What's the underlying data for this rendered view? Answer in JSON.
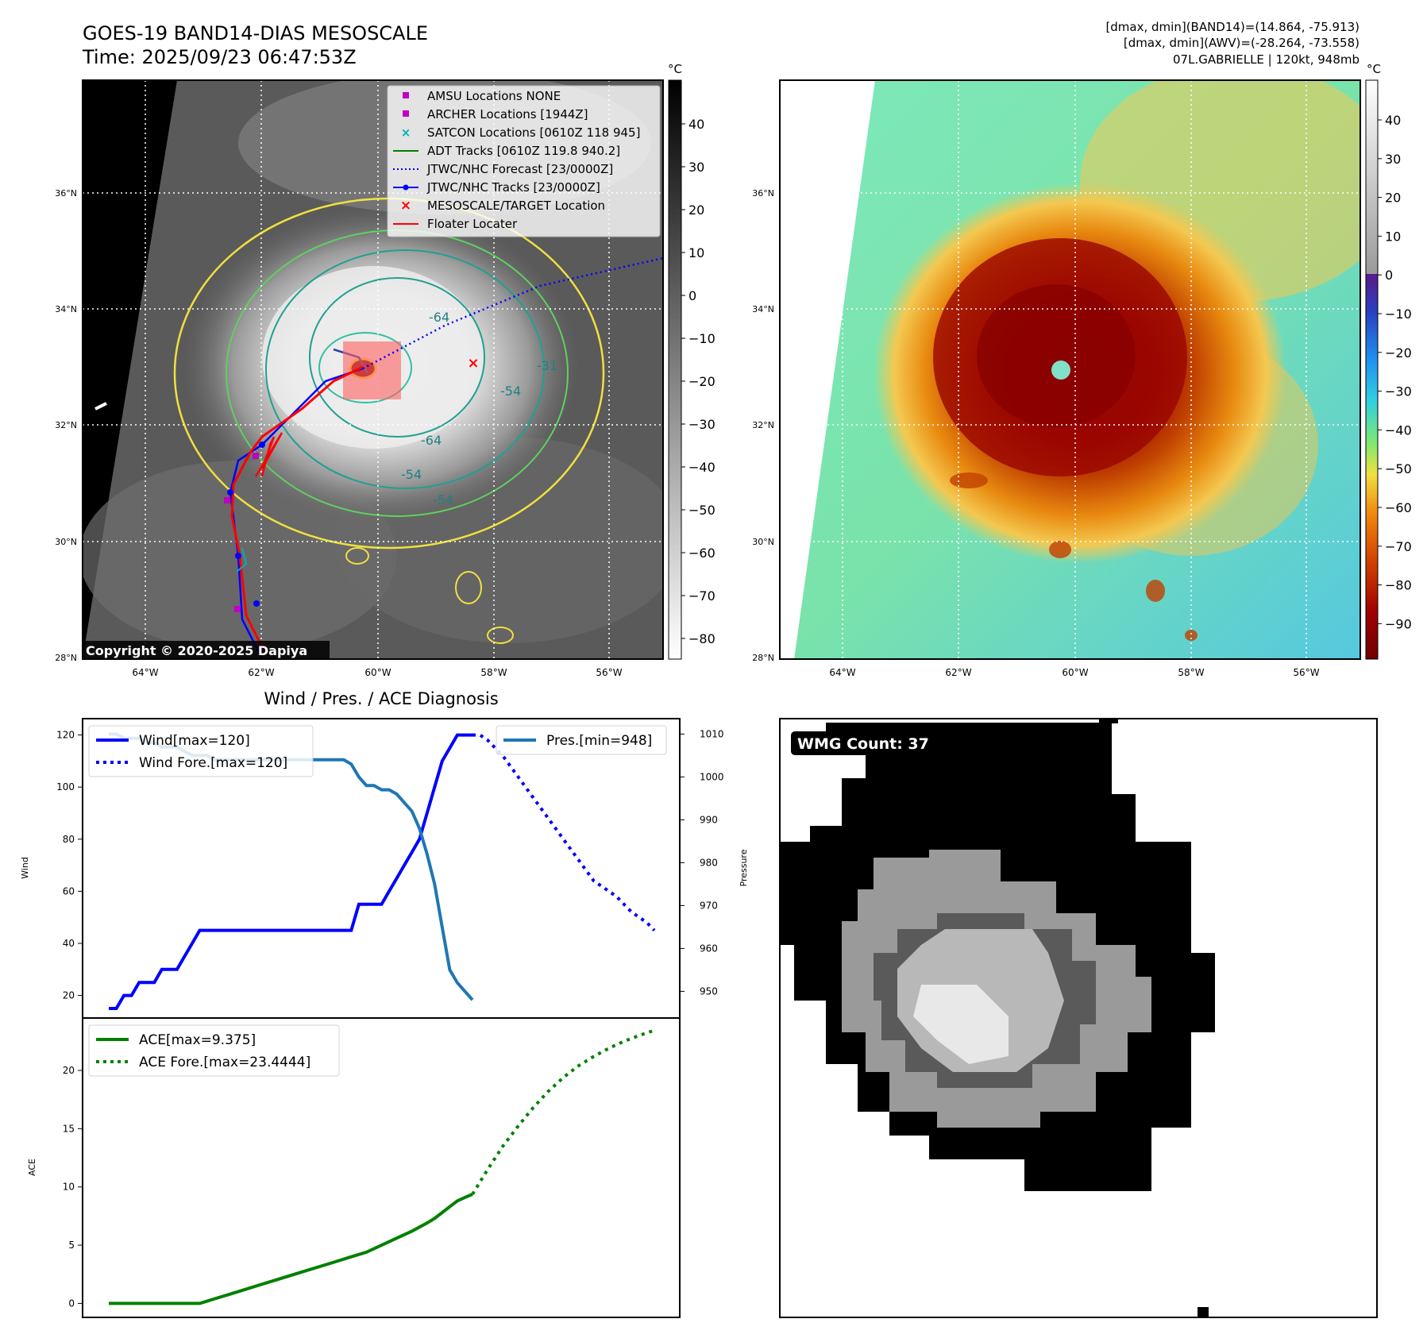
{
  "header": {
    "title_line1": "GOES-19 BAND14-DIAS MESOSCALE",
    "title_line2": "Time: 2025/09/23 06:47:53Z",
    "info_line1": "[dmax, dmin](BAND14)=(14.864, -75.913)",
    "info_line2": "[dmax, dmin](AWV)=(-28.264, -73.558)",
    "info_line3": "07L.GABRIELLE | 120kt, 948mb"
  },
  "map": {
    "lat_labels": [
      "36°N",
      "34°N",
      "32°N",
      "30°N",
      "28°N"
    ],
    "lon_labels": [
      "64°W",
      "62°W",
      "60°W",
      "58°W",
      "56°W"
    ],
    "copyright": "Copyright © 2020-2025 Dapiya",
    "contour_labels": [
      "-64",
      "-64",
      "-54",
      "-54",
      "-54",
      "-31"
    ],
    "legend": [
      {
        "label": "AMSU Locations NONE",
        "color": "#c000c0",
        "marker": "square"
      },
      {
        "label": "ARCHER Locations [1944Z]",
        "color": "#c000c0",
        "marker": "square"
      },
      {
        "label": "SATCON Locations [0610Z 118 945]",
        "color": "#00b0b0",
        "marker": "x"
      },
      {
        "label": "ADT Tracks [0610Z 119.8 940.2]",
        "color": "#008000",
        "marker": "line"
      },
      {
        "label": "JTWC/NHC Forecast [23/0000Z]",
        "color": "#0000ff",
        "marker": "dotted"
      },
      {
        "label": "JTWC/NHC Tracks [23/0000Z]",
        "color": "#0000ff",
        "marker": "line-dot"
      },
      {
        "label": "MESOSCALE/TARGET Location",
        "color": "#ff0000",
        "marker": "x"
      },
      {
        "label": "Floater Locater",
        "color": "#ff0000",
        "marker": "line"
      }
    ]
  },
  "colorbar_gray": {
    "unit": "°C",
    "ticks": [
      "40",
      "30",
      "20",
      "10",
      "0",
      "−10",
      "−20",
      "−30",
      "−40",
      "−50",
      "−60",
      "−70",
      "−80"
    ]
  },
  "colorbar_color": {
    "unit": "°C",
    "ticks": [
      "40",
      "30",
      "20",
      "10",
      "0",
      "−10",
      "−20",
      "−30",
      "−40",
      "−50",
      "−60",
      "−70",
      "−80",
      "−90"
    ]
  },
  "wmg": {
    "label": "WMG Count: 37"
  },
  "chart_data": [
    {
      "type": "line",
      "title": "Wind / Pres. / ACE Diagnosis",
      "ylabel": "Wind",
      "y2label": "Pressure",
      "ylim": [
        15,
        122
      ],
      "y2lim": [
        946,
        1011
      ],
      "yticks": [
        "20",
        "40",
        "60",
        "80",
        "100",
        "120"
      ],
      "y2ticks": [
        "950",
        "960",
        "970",
        "980",
        "990",
        "1000",
        "1010"
      ],
      "legend_left": [
        "Wind[max=120]",
        "Wind Fore.[max=120]"
      ],
      "legend_right": [
        "Pres.[min=948]"
      ],
      "series": [
        {
          "name": "Wind[max=120]",
          "color": "#0000ff",
          "style": "solid",
          "x": [
            0,
            1,
            2,
            3,
            4,
            5,
            6,
            7,
            8,
            9,
            10,
            11,
            12,
            13,
            14,
            15,
            16,
            17,
            18,
            19,
            20,
            21,
            22,
            23,
            24,
            25,
            26,
            27,
            28,
            29,
            30,
            31,
            32,
            33,
            34,
            35,
            36,
            37,
            38,
            39,
            40,
            41,
            42,
            43,
            44,
            45,
            46,
            47,
            48
          ],
          "y": [
            15,
            15,
            20,
            20,
            25,
            25,
            25,
            30,
            30,
            30,
            35,
            40,
            45,
            45,
            45,
            45,
            45,
            45,
            45,
            45,
            45,
            45,
            45,
            45,
            45,
            45,
            45,
            45,
            45,
            45,
            45,
            45,
            45,
            55,
            55,
            55,
            55,
            60,
            65,
            70,
            75,
            80,
            90,
            100,
            110,
            115,
            120,
            120,
            120
          ]
        },
        {
          "name": "Wind Fore.[max=120]",
          "color": "#0000ff",
          "style": "dotted",
          "x": [
            48,
            49,
            50,
            51,
            52,
            53,
            54,
            55,
            56,
            57,
            58,
            59,
            60,
            61,
            62,
            63,
            64,
            65,
            66,
            67,
            68,
            69,
            70,
            71,
            72
          ],
          "y": [
            120,
            120,
            118,
            115,
            112,
            108,
            104,
            100,
            96,
            92,
            88,
            84,
            80,
            76,
            72,
            68,
            64,
            62,
            60,
            58,
            55,
            52,
            50,
            48,
            45
          ]
        },
        {
          "name": "Pres.[min=948]",
          "color": "#1f77b4",
          "style": "solid",
          "axis": "y2",
          "x": [
            0,
            1,
            2,
            3,
            4,
            5,
            6,
            7,
            8,
            9,
            10,
            11,
            12,
            13,
            14,
            15,
            16,
            17,
            18,
            19,
            20,
            21,
            22,
            23,
            24,
            25,
            26,
            27,
            28,
            29,
            30,
            31,
            32,
            33,
            34,
            35,
            36,
            37,
            38,
            39,
            40,
            41,
            42,
            43,
            44,
            45,
            46,
            47,
            48
          ],
          "y": [
            1010,
            1010,
            1009,
            1009,
            1009,
            1008,
            1008,
            1007,
            1007,
            1007,
            1006,
            1005,
            1005,
            1005,
            1004,
            1004,
            1004,
            1004,
            1004,
            1004,
            1004,
            1004,
            1004,
            1004,
            1004,
            1004,
            1004,
            1004,
            1004,
            1004,
            1004,
            1004,
            1003,
            1000,
            998,
            998,
            997,
            997,
            996,
            994,
            992,
            988,
            982,
            975,
            965,
            955,
            952,
            950,
            948
          ]
        }
      ]
    },
    {
      "type": "line",
      "ylabel": "ACE",
      "ylim": [
        -1.2,
        24.5
      ],
      "yticks": [
        "0",
        "5",
        "10",
        "15",
        "20"
      ],
      "legend": [
        "ACE[max=9.375]",
        "ACE Fore.[max=23.4444]"
      ],
      "series": [
        {
          "name": "ACE[max=9.375]",
          "color": "#008000",
          "style": "solid",
          "x": [
            0,
            2,
            4,
            6,
            8,
            10,
            12,
            14,
            16,
            18,
            20,
            22,
            24,
            26,
            28,
            30,
            32,
            34,
            36,
            38,
            40,
            42,
            43,
            44,
            45,
            46,
            47,
            48
          ],
          "y": [
            0,
            0,
            0,
            0,
            0,
            0,
            0,
            0.4,
            0.8,
            1.2,
            1.6,
            2.0,
            2.4,
            2.8,
            3.2,
            3.6,
            4.0,
            4.4,
            5.0,
            5.6,
            6.2,
            6.9,
            7.3,
            7.8,
            8.3,
            8.8,
            9.1,
            9.375
          ]
        },
        {
          "name": "ACE Fore.[max=23.4444]",
          "color": "#008000",
          "style": "dotted",
          "x": [
            48,
            50,
            52,
            54,
            56,
            58,
            60,
            62,
            64,
            66,
            68,
            70,
            72
          ],
          "y": [
            9.375,
            11.5,
            13.5,
            15.2,
            16.8,
            18.2,
            19.4,
            20.4,
            21.2,
            21.9,
            22.5,
            23.0,
            23.4444
          ]
        }
      ]
    }
  ]
}
